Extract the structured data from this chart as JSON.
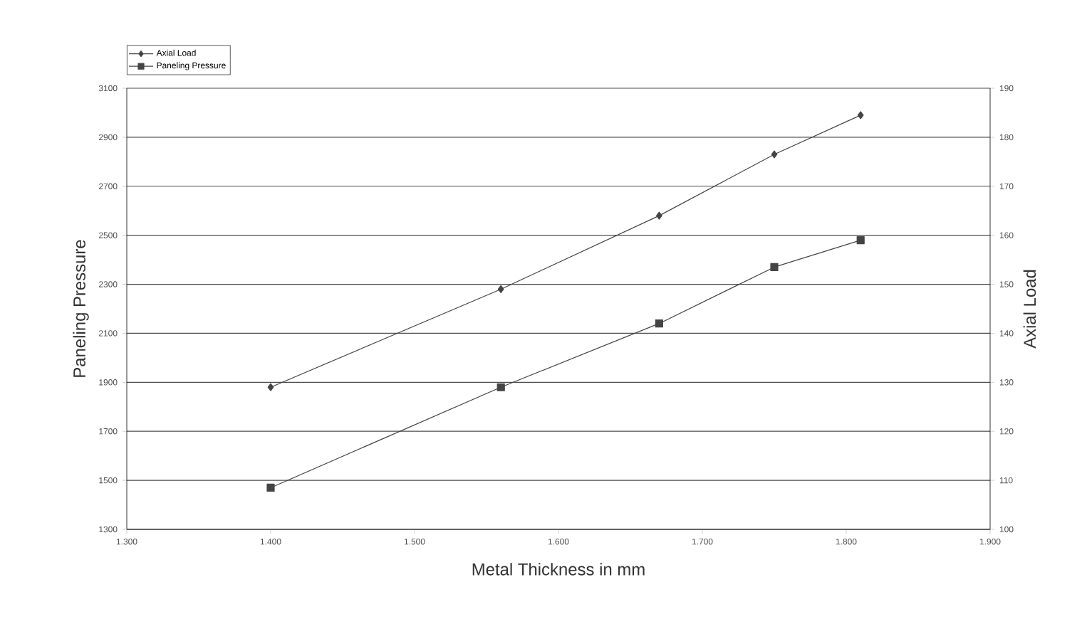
{
  "chart_data": {
    "type": "line",
    "xlabel": "Metal Thickness in mm",
    "ylabel": "Paneling Pressure",
    "y2label": "Axial Load",
    "x": [
      1.4,
      1.56,
      1.67,
      1.75,
      1.81
    ],
    "series": [
      {
        "name": "Axial Load",
        "color": "#444444",
        "axis": "y2",
        "marker": "diamond",
        "values": [
          129,
          149,
          164,
          176.5,
          184.5
        ]
      },
      {
        "name": "Paneling Pressure",
        "color": "#444444",
        "axis": "y",
        "marker": "square",
        "values": [
          1470,
          1880,
          2140,
          2370,
          2480
        ]
      }
    ],
    "xlim": [
      1.3,
      1.9
    ],
    "xticks": [
      {
        "value": 1.3,
        "label": "1.300"
      },
      {
        "value": 1.4,
        "label": "1.400"
      },
      {
        "value": 1.5,
        "label": "1.500"
      },
      {
        "value": 1.6,
        "label": "1.600"
      },
      {
        "value": 1.7,
        "label": "1.700"
      },
      {
        "value": 1.8,
        "label": "1.800"
      },
      {
        "value": 1.9,
        "label": "1.900"
      }
    ],
    "ylim": [
      1300,
      3100
    ],
    "yticks": [
      1300,
      1500,
      1700,
      1900,
      2100,
      2300,
      2500,
      2700,
      2900,
      3100
    ],
    "y2lim": [
      100,
      190
    ],
    "y2ticks": [
      100,
      110,
      120,
      130,
      140,
      150,
      160,
      170,
      180,
      190
    ],
    "grid": "y",
    "legend": "top left",
    "line_style": "solid"
  }
}
